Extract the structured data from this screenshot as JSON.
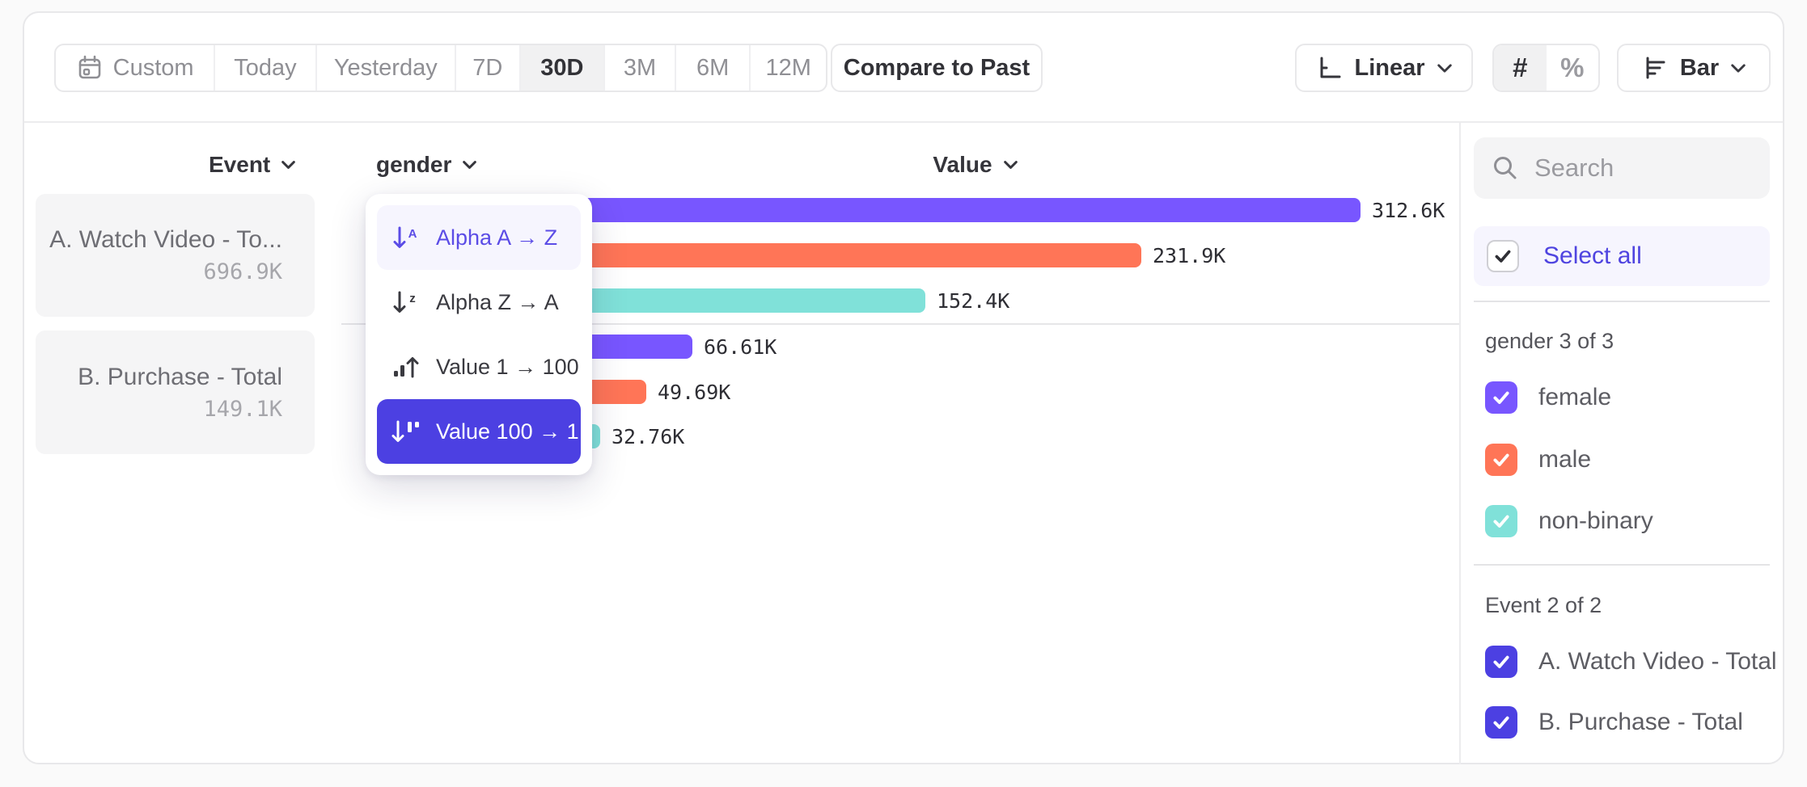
{
  "colors": {
    "accent": "#4f44e0",
    "purple": "#7856ff",
    "coral": "#ff7557",
    "teal": "#80e1d9",
    "selected_menu_bg": "#4c40e2",
    "hover_menu_bg": "#f6f5fe"
  },
  "toolbar": {
    "date_ranges": [
      {
        "label": "Custom",
        "icon": "calendar",
        "selected": false
      },
      {
        "label": "Today",
        "selected": false
      },
      {
        "label": "Yesterday",
        "selected": false
      },
      {
        "label": "7D",
        "selected": false
      },
      {
        "label": "30D",
        "selected": true
      },
      {
        "label": "3M",
        "selected": false
      },
      {
        "label": "6M",
        "selected": false
      },
      {
        "label": "12M",
        "selected": false
      }
    ],
    "compare_label": "Compare to Past",
    "scale_label": "Linear",
    "number_formats": [
      {
        "label": "#",
        "selected": true
      },
      {
        "label": "%",
        "selected": false
      }
    ],
    "chart_type_label": "Bar"
  },
  "columns": {
    "event": "Event",
    "breakdown": "gender",
    "value": "Value"
  },
  "event_cards": [
    {
      "title": "A. Watch Video - To...",
      "value": "696.9K"
    },
    {
      "title": "B. Purchase - Total",
      "value": "149.1K"
    }
  ],
  "sort_menu": {
    "items": [
      {
        "label": "Alpha A → Z",
        "icon": "sort-alpha-asc",
        "state": "hover"
      },
      {
        "label": "Alpha Z → A",
        "icon": "sort-alpha-desc",
        "state": "default"
      },
      {
        "label": "Value 1 → 100",
        "icon": "sort-value-asc",
        "state": "default"
      },
      {
        "label": "Value 100 → 1",
        "icon": "sort-value-desc",
        "state": "selected"
      }
    ]
  },
  "chart_data": {
    "type": "bar",
    "orientation": "horizontal",
    "category_axis": "Event",
    "breakdown": "gender",
    "value_axis": "Value",
    "sort": "Value 100 → 1",
    "x_range_k": [
      0,
      312.6
    ],
    "groups": [
      {
        "event": "A. Watch Video - Total",
        "total_label": "696.9K",
        "bars": [
          {
            "segment": "female",
            "value_k": 312.6,
            "label": "312.6K",
            "color": "#7856ff"
          },
          {
            "segment": "male",
            "value_k": 231.9,
            "label": "231.9K",
            "color": "#ff7557"
          },
          {
            "segment": "non-binary",
            "value_k": 152.4,
            "label": "152.4K",
            "color": "#80e1d9"
          }
        ]
      },
      {
        "event": "B. Purchase - Total",
        "total_label": "149.1K",
        "bars": [
          {
            "segment": "female",
            "value_k": 66.61,
            "label": "66.61K",
            "color": "#7856ff"
          },
          {
            "segment": "male",
            "value_k": 49.69,
            "label": "49.69K",
            "color": "#ff7557"
          },
          {
            "segment": "non-binary",
            "value_k": 32.76,
            "label": "32.76K",
            "color": "#80e1d9"
          }
        ]
      }
    ]
  },
  "sidebar": {
    "search_placeholder": "Search",
    "select_all_label": "Select all",
    "sections": [
      {
        "title": "gender 3 of 3",
        "items": [
          {
            "label": "female",
            "checked": true,
            "color": "#7856ff"
          },
          {
            "label": "male",
            "checked": true,
            "color": "#ff7557"
          },
          {
            "label": "non-binary",
            "checked": true,
            "color": "#80e1d9"
          }
        ]
      },
      {
        "title": "Event 2 of 2",
        "items": [
          {
            "label": "A. Watch Video - Total",
            "checked": true,
            "color": "#4c40e2"
          },
          {
            "label": "B. Purchase - Total",
            "checked": true,
            "color": "#4c40e2"
          }
        ]
      }
    ]
  }
}
